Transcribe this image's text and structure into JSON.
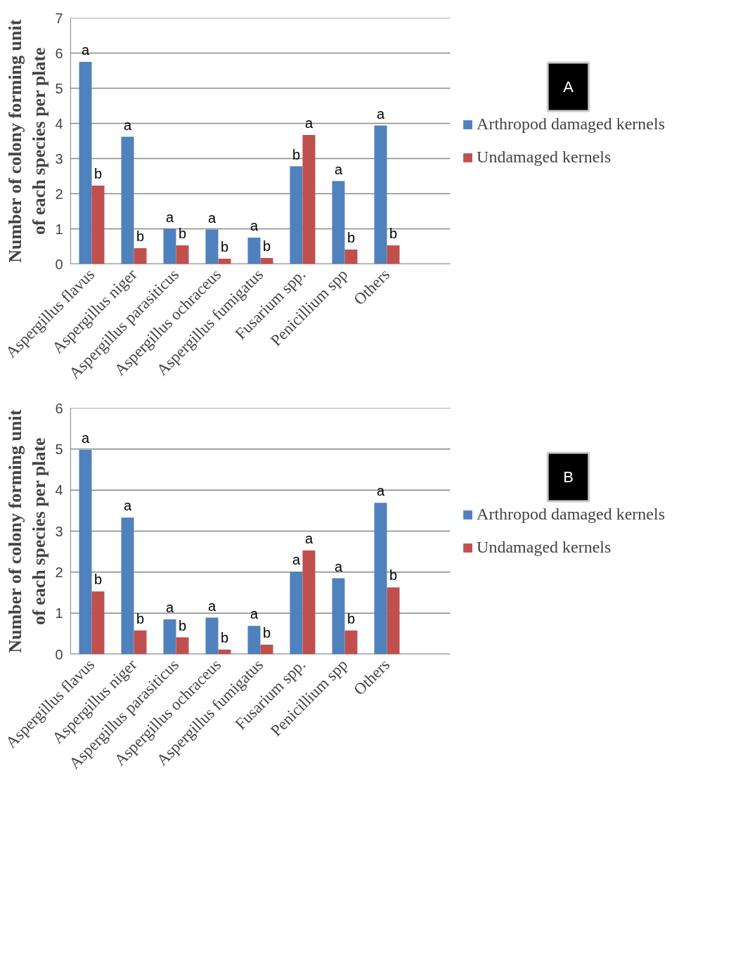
{
  "chart_data": [
    {
      "type": "bar",
      "ylabel": "Number of colony forming unit\nof each species per plate",
      "annotations": [
        "A"
      ],
      "categories": [
        "Aspergillus flavus",
        "Aspergillus niger",
        "Aspergillus parasiticus",
        "Aspergillus ochraceus",
        "Aspergillus fumigatus",
        "Fusarium spp.",
        "Penicillium spp",
        "Others",
        null
      ],
      "series": [
        {
          "name": "Arthropod damaged kernels",
          "color": "#4f81bd",
          "values": [
            5.75,
            3.62,
            1.0,
            0.98,
            0.75,
            2.78,
            2.36,
            3.94,
            null
          ],
          "value_labels": [
            "a",
            "a",
            "a",
            "a",
            "a",
            "b",
            "a",
            "a",
            null
          ]
        },
        {
          "name": "Undamaged kernels",
          "color": "#c0504d",
          "values": [
            2.23,
            0.45,
            0.53,
            0.15,
            0.17,
            3.67,
            0.41,
            0.53,
            null
          ],
          "value_labels": [
            "b",
            "b",
            "b",
            "b",
            "b",
            "a",
            "b",
            "b",
            null
          ]
        }
      ],
      "ylim": [
        0,
        7
      ],
      "yticks": [
        0,
        1,
        2,
        3,
        4,
        5,
        6,
        7
      ],
      "grid": "y",
      "legend": "right"
    },
    {
      "type": "bar",
      "ylabel": "Number of colony forming unit\nof each species per plate",
      "annotations": [
        "B"
      ],
      "categories": [
        "Aspergillus flavus",
        "Aspergillus niger",
        "Aspergillus parasiticus",
        "Aspergillus ochraceus",
        "Aspergillus fumigatus",
        "Fusarium spp.",
        "Penicillium spp",
        "Others",
        null
      ],
      "series": [
        {
          "name": "Arthropod damaged kernels",
          "color": "#4f81bd",
          "values": [
            4.98,
            3.33,
            0.85,
            0.89,
            0.69,
            2.01,
            1.85,
            3.69,
            null
          ],
          "value_labels": [
            "a",
            "a",
            "a",
            "a",
            "a",
            "a",
            "a",
            "a",
            null
          ]
        },
        {
          "name": "Undamaged kernels",
          "color": "#c0504d",
          "values": [
            1.53,
            0.58,
            0.41,
            0.11,
            0.23,
            2.53,
            0.58,
            1.63,
            null
          ],
          "value_labels": [
            "b",
            "b",
            "b",
            "b",
            "b",
            "a",
            "b",
            "b",
            null
          ]
        }
      ],
      "ylim": [
        0,
        6
      ],
      "yticks": [
        0,
        1,
        2,
        3,
        4,
        5,
        6
      ],
      "grid": "y",
      "legend": "right"
    }
  ]
}
